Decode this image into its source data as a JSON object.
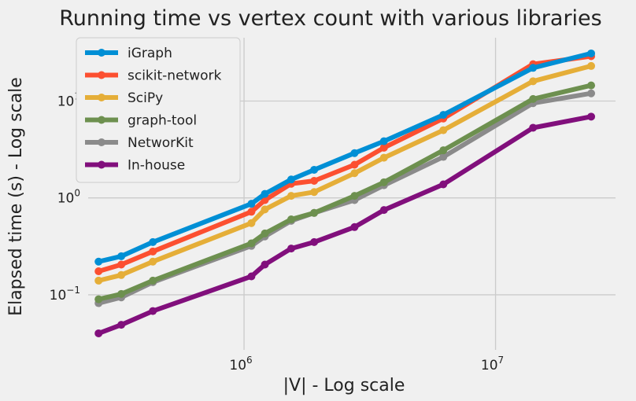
{
  "chart_data": {
    "type": "line",
    "title": "Running time vs vertex count with various libraries",
    "xlabel": "|V| - Log scale",
    "ylabel": "Elapsed time (s) - Log scale",
    "xscale": "log",
    "yscale": "log",
    "xlim": [
      240000,
      30000000
    ],
    "ylim": [
      0.027,
      45
    ],
    "xticks": [
      {
        "base": "10",
        "exp": "6",
        "value": 1000000
      },
      {
        "base": "10",
        "exp": "7",
        "value": 10000000
      }
    ],
    "yticks": [
      {
        "base": "10",
        "exp": "−1",
        "value": 0.1
      },
      {
        "base": "10",
        "exp": "0",
        "value": 1
      },
      {
        "base": "10",
        "exp": "1",
        "value": 10
      }
    ],
    "grid": true,
    "legend_position": "top-left",
    "x": [
      264000,
      325000,
      434000,
      1070000,
      1210000,
      1540000,
      1900000,
      2750000,
      3600000,
      6200000,
      14100000,
      24000000
    ],
    "series": [
      {
        "name": "iGraph",
        "color": "#008fd5",
        "values": [
          0.22,
          0.25,
          0.35,
          0.87,
          1.1,
          1.55,
          1.95,
          2.9,
          3.85,
          7.2,
          22.0,
          31.0
        ]
      },
      {
        "name": "scikit-network",
        "color": "#fc4f30",
        "values": [
          0.175,
          0.205,
          0.28,
          0.72,
          0.95,
          1.4,
          1.5,
          2.2,
          3.3,
          6.6,
          24.0,
          29.0
        ]
      },
      {
        "name": "SciPy",
        "color": "#e5ae38",
        "values": [
          0.14,
          0.16,
          0.22,
          0.55,
          0.76,
          1.05,
          1.15,
          1.8,
          2.6,
          5.0,
          16.0,
          23.0
        ]
      },
      {
        "name": "graph-tool",
        "color": "#6d904f",
        "values": [
          0.09,
          0.102,
          0.14,
          0.34,
          0.43,
          0.6,
          0.7,
          1.05,
          1.45,
          3.1,
          10.5,
          14.5
        ]
      },
      {
        "name": "NetworKit",
        "color": "#8b8b8b",
        "values": [
          0.082,
          0.094,
          0.135,
          0.32,
          0.4,
          0.58,
          0.7,
          0.95,
          1.35,
          2.65,
          9.5,
          12.0
        ]
      },
      {
        "name": "In-house",
        "color": "#810f7c",
        "values": [
          0.04,
          0.049,
          0.068,
          0.155,
          0.205,
          0.3,
          0.35,
          0.5,
          0.75,
          1.38,
          5.3,
          6.9
        ]
      }
    ]
  }
}
